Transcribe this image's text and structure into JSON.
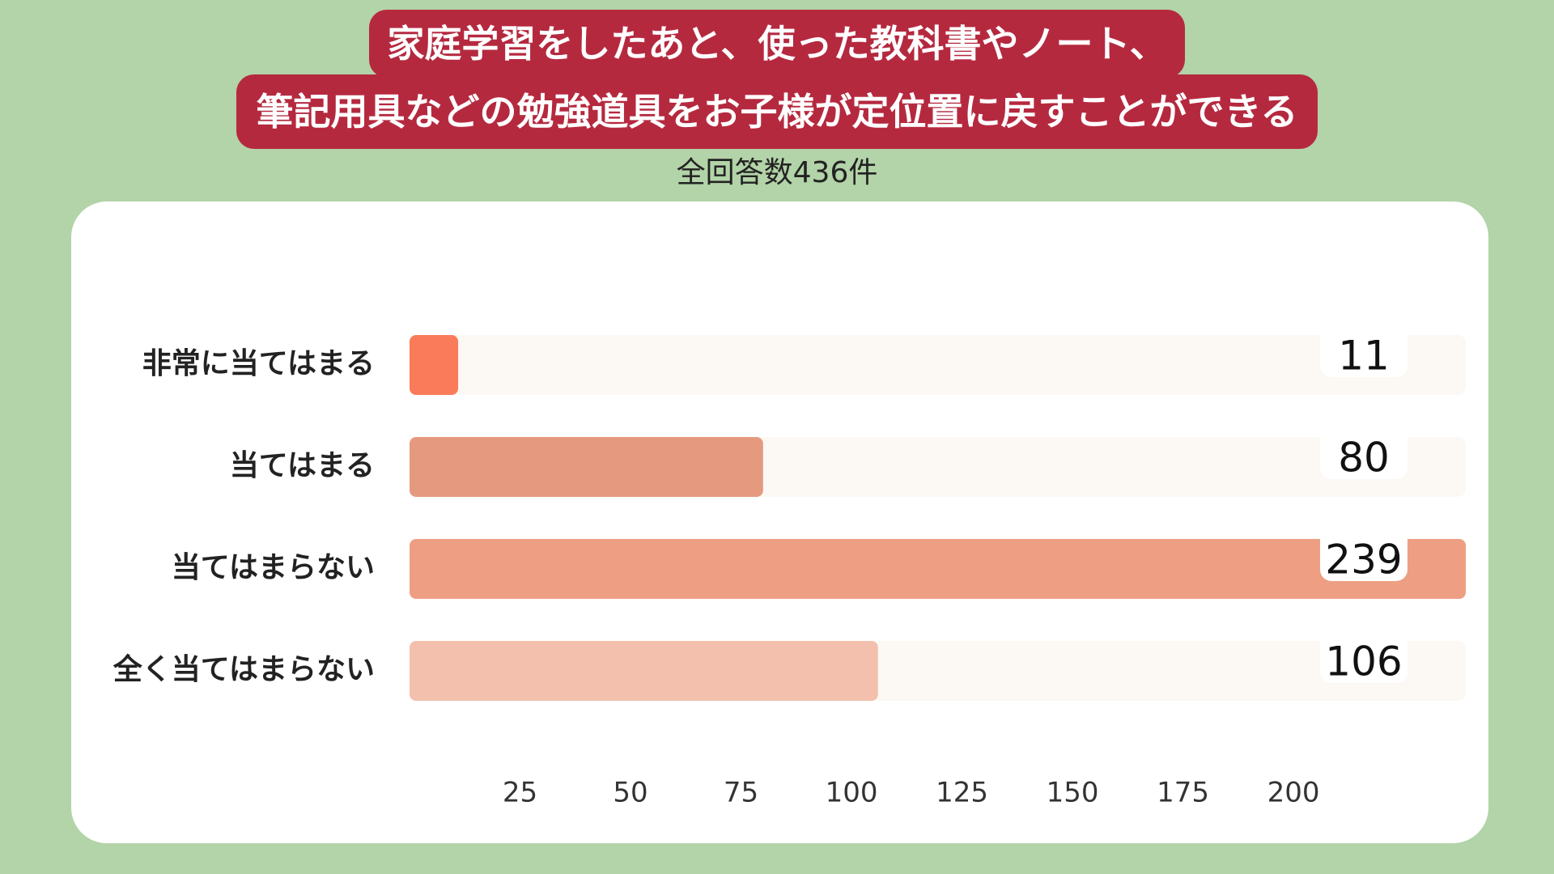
{
  "chart_data": {
    "type": "hbar",
    "title": [
      "家庭学習をしたあと、使った教科書やノート、",
      "筆記用具などの勉強道具をお子様が定位置に戻すことができる"
    ],
    "subtitle": "全回答数436件",
    "categories": [
      "非常に当てはまる",
      "当てはまる",
      "当てはまらない",
      "全く当てはまらない"
    ],
    "values": [
      11,
      80,
      239,
      106
    ],
    "colors": [
      "#fa7b5a",
      "#e59a80",
      "#ee9f83",
      "#f2c0ad"
    ],
    "xlim": [
      0,
      239
    ],
    "xticks": [
      25,
      50,
      75,
      100,
      125,
      150,
      175,
      200
    ]
  }
}
